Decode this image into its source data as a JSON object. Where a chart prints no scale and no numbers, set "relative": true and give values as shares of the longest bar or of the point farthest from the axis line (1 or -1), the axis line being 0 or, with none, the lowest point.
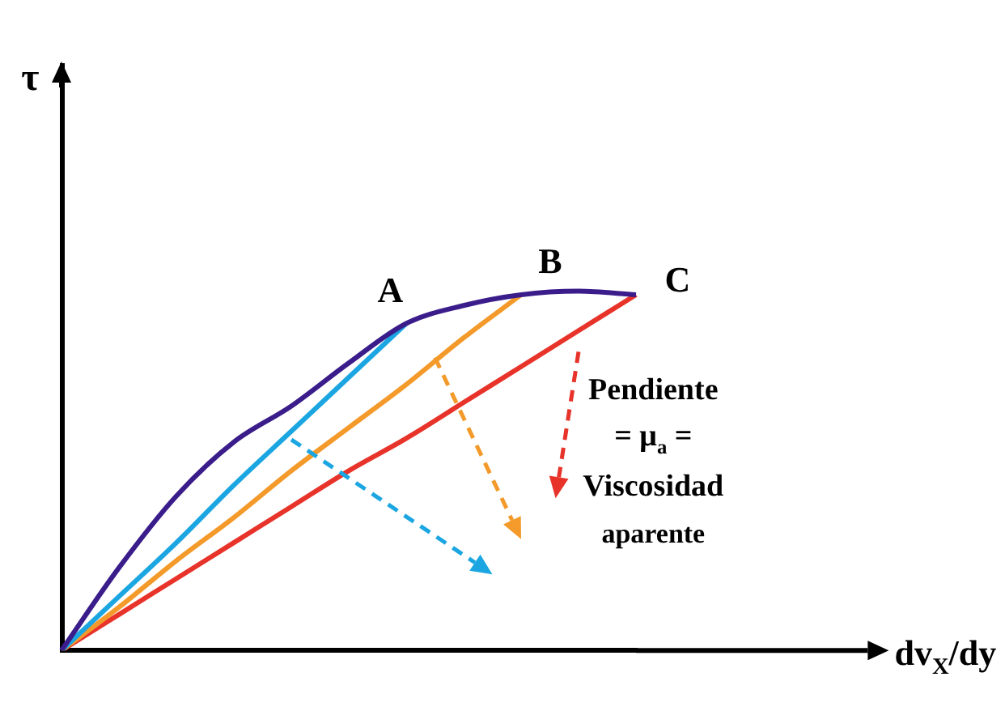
{
  "chart_data": {
    "type": "line",
    "relative": true,
    "categories": [
      null,
      null,
      null,
      null,
      null,
      null,
      null,
      null,
      null,
      null,
      null
    ],
    "grid": false,
    "legend": false,
    "marker": "none",
    "series": [
      {
        "color": "#3a1d8a",
        "values": [
          0,
          0.23,
          0.43,
          0.58,
          0.68,
          0.8,
          0.91,
          0.96,
          0.99,
          1.0,
          0.99
        ]
      },
      {
        "color": "#1ba6e2",
        "values": [
          0,
          0.15,
          0.3,
          0.46,
          0.61,
          0.76,
          0.91,
          null,
          null,
          null,
          null
        ]
      },
      {
        "color": "#f39a2b",
        "values": [
          0,
          0.12,
          0.25,
          0.37,
          0.5,
          0.62,
          0.74,
          0.87,
          0.99,
          null,
          null
        ]
      },
      {
        "color": "#e8332a",
        "values": [
          0,
          0.1,
          0.2,
          0.3,
          0.4,
          0.5,
          0.59,
          0.69,
          0.79,
          0.89,
          0.99
        ]
      }
    ],
    "annotations": [
      "A",
      "B",
      "C",
      "Pendiente",
      "= μ$_{a}$ =",
      "Viscosidad",
      "aparente",
      "τ",
      "dv$_{X}$/dy"
    ]
  }
}
